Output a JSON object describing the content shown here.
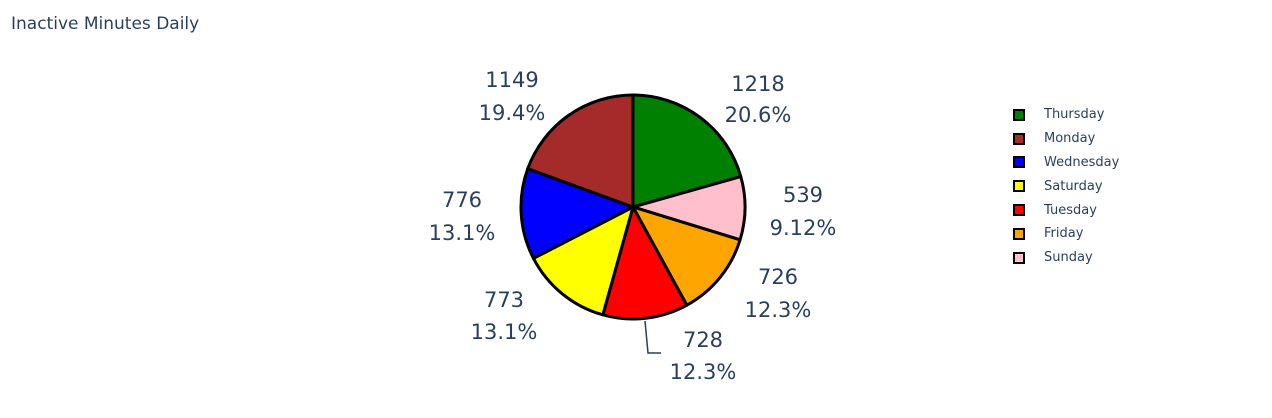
{
  "title": "Inactive Minutes Daily",
  "chart_data": {
    "type": "pie",
    "title": "Inactive Minutes Daily",
    "slices": [
      {
        "label": "Thursday",
        "value": 1218,
        "percent_text": "20.6%",
        "color": "#008000"
      },
      {
        "label": "Sunday",
        "value": 539,
        "percent_text": "9.12%",
        "color": "#ffc0cb"
      },
      {
        "label": "Friday",
        "value": 726,
        "percent_text": "12.3%",
        "color": "#ffa500"
      },
      {
        "label": "Tuesday",
        "value": 728,
        "percent_text": "12.3%",
        "color": "#ff0000"
      },
      {
        "label": "Saturday",
        "value": 773,
        "percent_text": "13.1%",
        "color": "#ffff00"
      },
      {
        "label": "Wednesday",
        "value": 776,
        "percent_text": "13.1%",
        "color": "#0000ff"
      },
      {
        "label": "Monday",
        "value": 1149,
        "percent_text": "19.4%",
        "color": "#a52a2a"
      }
    ],
    "legend_order": [
      "Thursday",
      "Monday",
      "Wednesday",
      "Saturday",
      "Tuesday",
      "Friday",
      "Sunday"
    ],
    "legend_position": "right",
    "slice_outline_color": "#000000"
  }
}
